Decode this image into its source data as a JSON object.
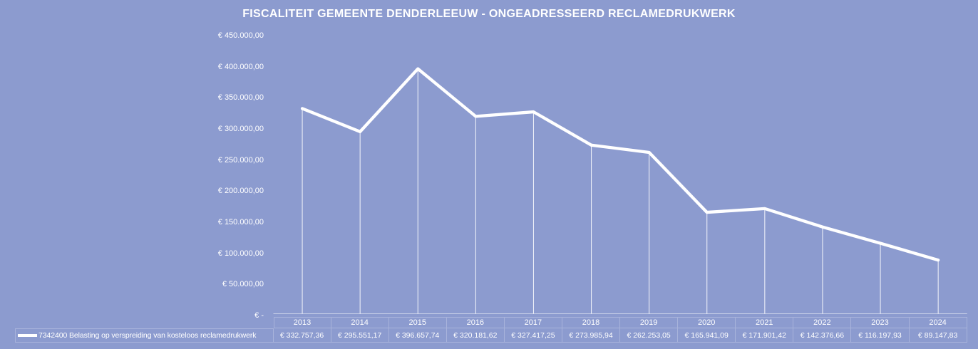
{
  "chart_data": {
    "type": "line",
    "title": "FISCALITEIT GEMEENTE DENDERLEEUW - ONGEADRESSEERD RECLAMEDRUKWERK",
    "categories": [
      "2013",
      "2014",
      "2015",
      "2016",
      "2017",
      "2018",
      "2019",
      "2020",
      "2021",
      "2022",
      "2023",
      "2024"
    ],
    "series": [
      {
        "name": "7342400 Belasting op verspreiding van kosteloos reclamedrukwerk",
        "values": [
          332757.36,
          295551.17,
          396657.74,
          320181.62,
          327417.25,
          273985.94,
          262253.05,
          165941.09,
          171901.42,
          142376.66,
          116197.93,
          89147.83
        ],
        "value_labels": [
          "€ 332.757,36",
          "€ 295.551,17",
          "€ 396.657,74",
          "€ 320.181,62",
          "€ 327.417,25",
          "€ 273.985,94",
          "€ 262.253,05",
          "€ 165.941,09",
          "€ 171.901,42",
          "€ 142.376,66",
          "€ 116.197,93",
          "€ 89.147,83"
        ]
      }
    ],
    "ylim": [
      0,
      450000
    ],
    "y_tick_labels": [
      "€ 450.000,00",
      "€ 400.000,00",
      "€ 350.000,00",
      "€ 300.000,00",
      "€ 250.000,00",
      "€ 200.000,00",
      "€ 150.000,00",
      "€ 100.000,00",
      "€ 50.000,00",
      "€ -"
    ],
    "grid": false,
    "legend_position": "bottom-table",
    "colors": {
      "background": "#8C9BCF",
      "series_line": "#FFFFFF",
      "drop_line": "#FFFFFF",
      "table_border": "#A8B3DB",
      "text": "#FFFFFF"
    }
  }
}
